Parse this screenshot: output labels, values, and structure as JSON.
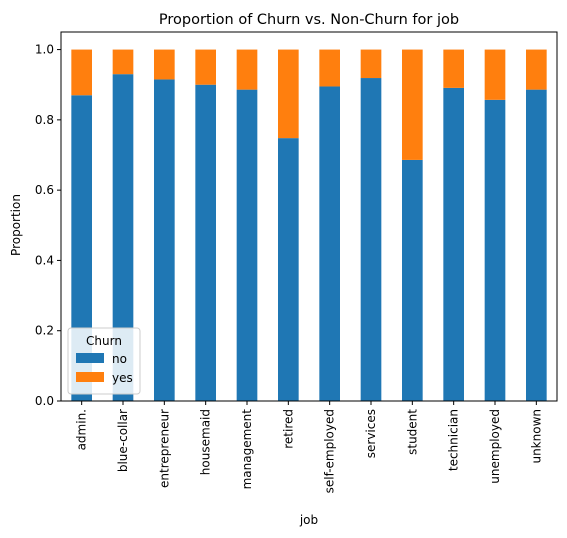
{
  "chart_data": {
    "type": "bar",
    "stacked": true,
    "title": "Proportion of Churn vs. Non-Churn for job",
    "xlabel": "job",
    "ylabel": "Proportion",
    "ylim": [
      0,
      1.05
    ],
    "yticks": [
      "0.0",
      "0.2",
      "0.4",
      "0.6",
      "0.8",
      "1.0"
    ],
    "categories": [
      "admin.",
      "blue-collar",
      "entrepreneur",
      "housemaid",
      "management",
      "retired",
      "self-employed",
      "services",
      "student",
      "technician",
      "unemployed",
      "unknown"
    ],
    "series": [
      {
        "name": "no",
        "color": "#1f77b4",
        "values": [
          0.87,
          0.93,
          0.915,
          0.9,
          0.886,
          0.748,
          0.895,
          0.919,
          0.686,
          0.891,
          0.857,
          0.886
        ]
      },
      {
        "name": "yes",
        "color": "#ff7f0e",
        "values": [
          0.13,
          0.07,
          0.085,
          0.1,
          0.114,
          0.252,
          0.105,
          0.081,
          0.314,
          0.109,
          0.143,
          0.114
        ]
      }
    ],
    "legend": {
      "title": "Churn",
      "position": "lower-left"
    },
    "grid": false
  }
}
